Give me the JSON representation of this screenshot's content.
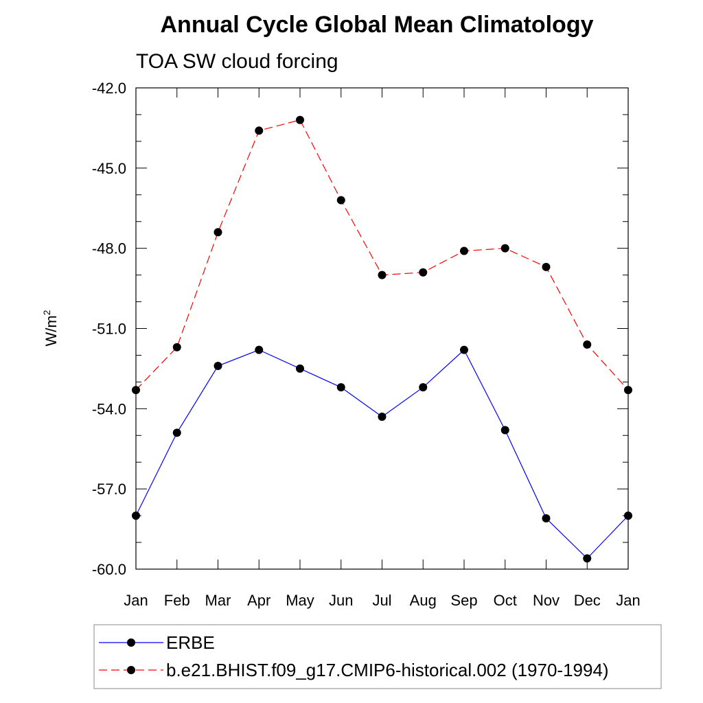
{
  "chart_data": {
    "type": "line",
    "title": "Annual Cycle Global Mean Climatology",
    "subtitle": "TOA SW cloud forcing",
    "xlabel": "",
    "ylabel": "W/m",
    "ylabel_superscript": "2",
    "categories": [
      "Jan",
      "Feb",
      "Mar",
      "Apr",
      "May",
      "Jun",
      "Jul",
      "Aug",
      "Sep",
      "Oct",
      "Nov",
      "Dec",
      "Jan"
    ],
    "ylim": [
      -60.0,
      -42.0
    ],
    "yticks": [
      -42.0,
      -45.0,
      -48.0,
      -51.0,
      -54.0,
      -57.0,
      -60.0
    ],
    "ytick_labels": [
      "-42.0",
      "-45.0",
      "-48.0",
      "-51.0",
      "-54.0",
      "-57.0",
      "-60.0"
    ],
    "series": [
      {
        "name": "ERBE",
        "color": "#0000ff",
        "style": "solid",
        "marker": "filled-circle",
        "values": [
          -58.0,
          -54.9,
          -52.4,
          -51.8,
          -52.5,
          -53.2,
          -54.3,
          -53.2,
          -51.8,
          -54.8,
          -58.1,
          -59.6,
          -58.0
        ]
      },
      {
        "name": "b.e21.BHIST.f09_g17.CMIP6-historical.002 (1970-1994)",
        "color": "#ff0000",
        "style": "dashed",
        "marker": "filled-circle",
        "values": [
          -53.3,
          -51.7,
          -47.4,
          -43.6,
          -43.2,
          -46.2,
          -49.0,
          -48.9,
          -48.1,
          -48.0,
          -48.7,
          -51.6,
          -53.3
        ]
      }
    ],
    "grid": false,
    "legend_position": "bottom"
  }
}
